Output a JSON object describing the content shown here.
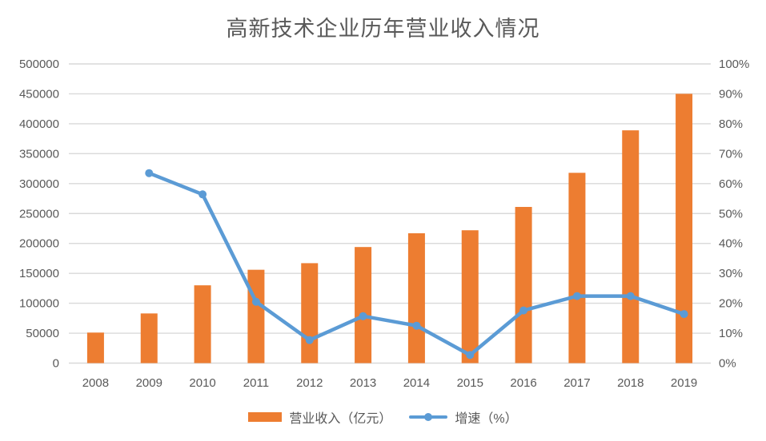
{
  "chart_data": {
    "type": "combo",
    "title": "高新技术企业历年营业收入情况",
    "categories": [
      "2008",
      "2009",
      "2010",
      "2011",
      "2012",
      "2013",
      "2014",
      "2015",
      "2016",
      "2017",
      "2018",
      "2019"
    ],
    "series": [
      {
        "name": "营业收入（亿元）",
        "type": "bar",
        "axis": "left",
        "color": "#ED7D31",
        "values": [
          51000,
          83000,
          130000,
          156000,
          167000,
          194000,
          217000,
          222000,
          261000,
          318000,
          389000,
          450000
        ]
      },
      {
        "name": "增速（%）",
        "type": "line",
        "axis": "right",
        "color": "#5B9BD5",
        "values": [
          null,
          63.5,
          56.4,
          20.5,
          7.7,
          15.7,
          12.5,
          2.7,
          17.6,
          22.4,
          22.4,
          16.4
        ]
      }
    ],
    "left_axis": {
      "min": 0,
      "max": 500000,
      "step": 50000
    },
    "right_axis": {
      "min": 0,
      "max": 100,
      "step": 10,
      "suffix": "%"
    },
    "grid": true,
    "legend_position": "bottom",
    "colors": {
      "grid": "#D9D9D9",
      "text": "#595959",
      "title": "#595959",
      "background": "#FFFFFF"
    }
  }
}
